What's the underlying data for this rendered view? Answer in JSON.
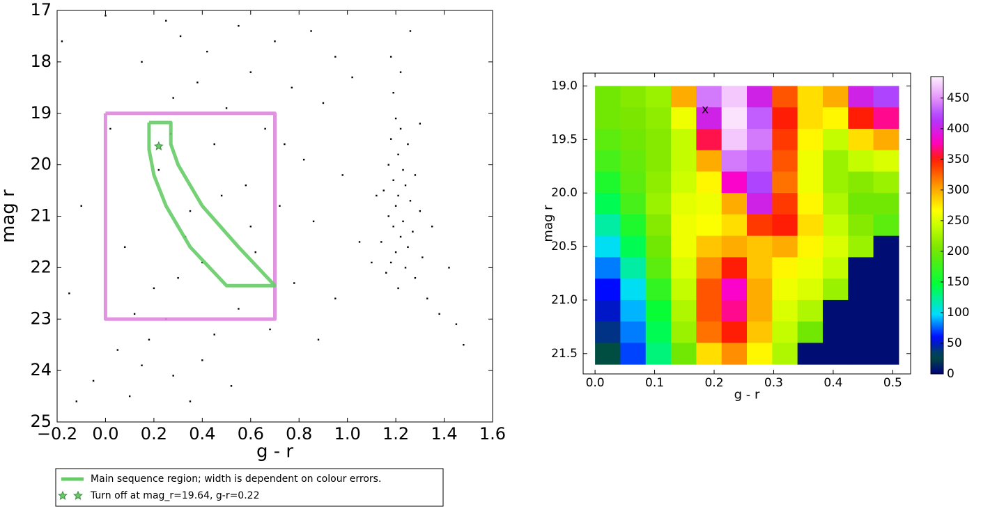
{
  "chart_data": [
    {
      "type": "scatter",
      "xlabel": "g - r",
      "ylabel": "mag r",
      "xlim": [
        -0.2,
        1.6
      ],
      "ylim": [
        25,
        17
      ],
      "xticks": [
        {
          "value": -0.2,
          "label": "−0.2"
        },
        {
          "value": 0,
          "label": "0.0"
        },
        0.2,
        0.4,
        0.6,
        0.8,
        {
          "value": 1,
          "label": "1.0"
        },
        1.2,
        1.4,
        1.6
      ],
      "yticks": [
        17,
        18,
        19,
        20,
        21,
        22,
        23,
        24,
        25
      ],
      "legend": "below",
      "series": [
        {
          "marker": "dot",
          "color": "#000000",
          "x": [
            1.2,
            1.22,
            1.18,
            1.25,
            1.21,
            1.17,
            1.23,
            1.28,
            1.19,
            1.24,
            1.15,
            1.21,
            1.26,
            1.2,
            1.3,
            1.17,
            1.23,
            1.19,
            1.27,
            1.22,
            1.14,
            1.25,
            1.2,
            1.31,
            1.18,
            1.24,
            1.16,
            1.28,
            1.21,
            1.33,
            1.22,
            1.19,
            1.26,
            1.18,
            1.3,
            1.12,
            1.35,
            1.1,
            1.38,
            1.45,
            0.25,
            0.31,
            0.42,
            0.55,
            0.7,
            0.85,
            0.95,
            0.6,
            0.38,
            0.28,
            0.5,
            0.77,
            0.9,
            1.02,
            0.66,
            0.45,
            0.82,
            0.98,
            0.58,
            0.72,
            0.35,
            0.86,
            1.05,
            0.62,
            0.4,
            0.3,
            0.78,
            0.95,
            0.55,
            0.25,
            0.68,
            0.88,
            0.45,
            0.2,
            0.33,
            0.48,
            0.22,
            0.27,
            0.6,
            0.74,
            0.05,
            0.15,
            -0.05,
            0.1,
            0.28,
            0.4,
            0.52,
            0.18,
            -0.12,
            0.35,
            0.02,
            -0.1,
            0.08,
            -0.15,
            0.12,
            -0.18,
            0.0,
            1.48,
            1.42,
            0.15
          ],
          "values": [
            19.1,
            19.3,
            19.5,
            19.6,
            19.8,
            20.0,
            20.1,
            20.2,
            20.3,
            20.4,
            20.5,
            20.6,
            20.7,
            20.8,
            20.9,
            21.0,
            21.1,
            21.2,
            21.3,
            21.4,
            21.5,
            21.6,
            21.7,
            21.8,
            21.9,
            22.0,
            22.1,
            22.2,
            22.4,
            22.6,
            18.2,
            18.6,
            17.4,
            17.9,
            19.2,
            20.6,
            21.2,
            21.9,
            22.9,
            23.1,
            17.2,
            17.5,
            17.8,
            17.3,
            17.6,
            17.4,
            17.9,
            18.2,
            18.4,
            18.7,
            18.9,
            18.5,
            18.8,
            18.3,
            19.3,
            19.6,
            19.9,
            20.2,
            20.4,
            20.8,
            20.9,
            21.1,
            21.5,
            21.7,
            21.9,
            22.2,
            22.3,
            22.6,
            22.8,
            23.0,
            23.2,
            23.4,
            23.3,
            22.4,
            21.4,
            20.6,
            20.1,
            19.4,
            21.2,
            19.6,
            23.6,
            23.9,
            24.2,
            24.5,
            24.1,
            23.8,
            24.3,
            23.4,
            24.6,
            24.6,
            19.3,
            20.8,
            21.6,
            22.5,
            22.9,
            17.6,
            17.1,
            23.5,
            22.0,
            18.0
          ]
        },
        {
          "marker": "line",
          "color": "#dd88dd",
          "x": [
            0,
            0.7,
            0.7,
            0,
            0
          ],
          "values": [
            19,
            19,
            23,
            23,
            19
          ]
        },
        {
          "name": "Main sequence region; width is dependent on colour errors.",
          "marker": "line",
          "color": "#66cc66",
          "x": [
            0.18,
            0.27,
            0.27,
            0.3,
            0.4,
            0.55,
            0.7,
            0.5,
            0.35,
            0.25,
            0.2,
            0.18,
            0.18
          ],
          "values": [
            19.18,
            19.18,
            19.6,
            20.0,
            20.8,
            21.6,
            22.35,
            22.35,
            21.6,
            20.8,
            20.2,
            19.7,
            19.18
          ]
        },
        {
          "name": "Turn off at mag_r=19.64, g-r=0.22",
          "marker": "star",
          "color": "#66cc66",
          "x": [
            0.22
          ],
          "values": [
            19.64
          ]
        }
      ]
    },
    {
      "type": "heatmap",
      "xlabel": "g - r",
      "ylabel": "mag r",
      "xlim": [
        -0.02,
        0.53
      ],
      "ylim": [
        21.69,
        18.88
      ],
      "xticks": [
        {
          "value": 0,
          "label": "0.0"
        },
        0.1,
        0.2,
        0.3,
        0.4,
        0.5
      ],
      "yticks": [
        {
          "value": 19,
          "label": "19.0"
        },
        19.5,
        {
          "value": 20,
          "label": "20.0"
        },
        20.5,
        {
          "value": 21,
          "label": "21.0"
        },
        21.5
      ],
      "colormap": "gist_ncar",
      "clim": [
        0,
        485
      ],
      "cticks": [
        0,
        50,
        100,
        150,
        200,
        250,
        300,
        350,
        400,
        450
      ],
      "annotation": {
        "text": "x",
        "x": 0.185,
        "y": 19.22
      },
      "xbins": [
        0,
        0.0425,
        0.085,
        0.1275,
        0.17,
        0.2125,
        0.255,
        0.2975,
        0.34,
        0.3825,
        0.425,
        0.4675,
        0.51
      ],
      "ybins": [
        19.0,
        19.2,
        19.4,
        19.6,
        19.8,
        20.0,
        20.2,
        20.4,
        20.6,
        20.8,
        21.0,
        21.2,
        21.4,
        21.6
      ],
      "z": [
        [
          200,
          210,
          220,
          300,
          440,
          470,
          400,
          330,
          280,
          300,
          400,
          420
        ],
        [
          200,
          205,
          215,
          260,
          400,
          480,
          430,
          350,
          280,
          270,
          350,
          370
        ],
        [
          190,
          200,
          210,
          240,
          360,
          470,
          440,
          340,
          270,
          240,
          280,
          300
        ],
        [
          180,
          195,
          210,
          240,
          300,
          440,
          430,
          330,
          260,
          220,
          240,
          250
        ],
        [
          160,
          190,
          215,
          245,
          270,
          380,
          420,
          320,
          260,
          220,
          210,
          220
        ],
        [
          140,
          180,
          220,
          255,
          260,
          300,
          400,
          340,
          270,
          230,
          200,
          200
        ],
        [
          120,
          160,
          210,
          260,
          265,
          280,
          340,
          350,
          280,
          240,
          210,
          190
        ],
        [
          100,
          140,
          200,
          260,
          290,
          300,
          290,
          300,
          270,
          250,
          220,
          5
        ],
        [
          80,
          120,
          190,
          250,
          310,
          350,
          290,
          270,
          260,
          240,
          5,
          5
        ],
        [
          60,
          100,
          170,
          240,
          330,
          380,
          300,
          260,
          250,
          220,
          5,
          5
        ],
        [
          50,
          90,
          150,
          230,
          330,
          370,
          300,
          250,
          230,
          5,
          5,
          5
        ],
        [
          40,
          80,
          140,
          220,
          320,
          350,
          290,
          240,
          200,
          5,
          5,
          5
        ],
        [
          30,
          70,
          130,
          200,
          280,
          310,
          270,
          230,
          5,
          5,
          5,
          5
        ]
      ]
    }
  ]
}
